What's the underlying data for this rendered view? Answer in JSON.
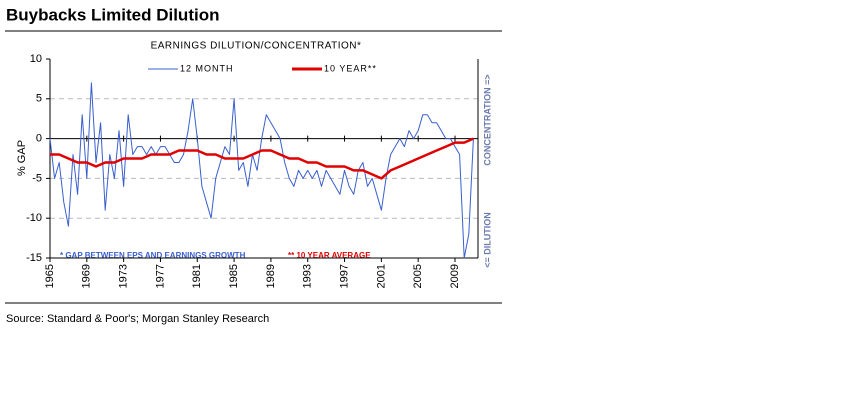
{
  "header": {
    "title": "Buybacks Limited Dilution"
  },
  "chart_data": {
    "type": "line",
    "title": "EARNINGS DILUTION/CONCENTRATION*",
    "y_label": "% GAP",
    "annotations": [
      "* GAP BETWEEN EPS AND EARNINGS GROWTH",
      "** 10 YEAR AVERAGE",
      "CONCENTRATION =>",
      "<= DILUTION"
    ],
    "xlim": [
      1965,
      2011.5
    ],
    "xticks": [
      1965,
      1969,
      1973,
      1977,
      1981,
      1985,
      1989,
      1993,
      1997,
      2001,
      2005,
      2009
    ],
    "ylim": [
      -15,
      10
    ],
    "yticks": [
      10,
      5,
      0,
      -5,
      -10,
      -15
    ],
    "grid": true,
    "series": [
      {
        "name": "12 MONTH",
        "color": "#3a5fcd",
        "x": [
          1965,
          1965.5,
          1966,
          1966.5,
          1967,
          1967.5,
          1968,
          1968.5,
          1969,
          1969.5,
          1970,
          1970.5,
          1971,
          1971.5,
          1972,
          1972.5,
          1973,
          1973.5,
          1974,
          1974.5,
          1975,
          1975.5,
          1976,
          1976.5,
          1977,
          1977.5,
          1978,
          1978.5,
          1979,
          1979.5,
          1980,
          1980.5,
          1981,
          1981.5,
          1982,
          1982.5,
          1983,
          1983.5,
          1984,
          1984.5,
          1985,
          1985.5,
          1986,
          1986.5,
          1987,
          1987.5,
          1988,
          1988.5,
          1989,
          1989.5,
          1990,
          1990.5,
          1991,
          1991.5,
          1992,
          1992.5,
          1993,
          1993.5,
          1994,
          1994.5,
          1995,
          1995.5,
          1996,
          1996.5,
          1997,
          1997.5,
          1998,
          1998.5,
          1999,
          1999.5,
          2000,
          2000.5,
          2001,
          2001.5,
          2002,
          2002.5,
          2003,
          2003.5,
          2004,
          2004.5,
          2005,
          2005.5,
          2006,
          2006.5,
          2007,
          2007.5,
          2008,
          2008.5,
          2009,
          2009.5,
          2010,
          2010.5,
          2011
        ],
        "values": [
          0,
          -5,
          -3,
          -8,
          -11,
          -2,
          -7,
          3,
          -5,
          7,
          -3,
          2,
          -9,
          -2,
          -5,
          1,
          -6,
          3,
          -2,
          -1,
          -1,
          -2,
          -1,
          -2,
          -1,
          -1,
          -2,
          -3,
          -3,
          -2,
          1,
          5,
          0,
          -6,
          -8,
          -10,
          -5,
          -3,
          -1,
          -2,
          5,
          -4,
          -3,
          -6,
          -2,
          -4,
          0,
          3,
          2,
          1,
          0,
          -3,
          -5,
          -6,
          -4,
          -5,
          -4,
          -5,
          -4,
          -6,
          -4,
          -5,
          -6,
          -7,
          -4,
          -6,
          -7,
          -4,
          -3,
          -6,
          -5,
          -7,
          -9,
          -5,
          -2,
          -1,
          0,
          -1,
          1,
          0,
          1,
          3,
          3,
          2,
          2,
          1,
          0,
          0,
          -1,
          -2,
          -15,
          -12,
          0
        ]
      },
      {
        "name": "10 YEAR**",
        "color": "#e00000",
        "x": [
          1965,
          1966,
          1967,
          1968,
          1969,
          1970,
          1971,
          1972,
          1973,
          1974,
          1975,
          1976,
          1977,
          1978,
          1979,
          1980,
          1981,
          1982,
          1983,
          1984,
          1985,
          1986,
          1987,
          1988,
          1989,
          1990,
          1991,
          1992,
          1993,
          1994,
          1995,
          1996,
          1997,
          1998,
          1999,
          2000,
          2001,
          2002,
          2003,
          2004,
          2005,
          2006,
          2007,
          2008,
          2009,
          2010,
          2011
        ],
        "values": [
          -2,
          -2,
          -2.5,
          -3,
          -3,
          -3.5,
          -3,
          -3,
          -2.5,
          -2.5,
          -2.5,
          -2,
          -2,
          -2,
          -1.5,
          -1.5,
          -1.5,
          -2,
          -2,
          -2.5,
          -2.5,
          -2.5,
          -2,
          -1.5,
          -1.5,
          -2,
          -2.5,
          -2.5,
          -3,
          -3,
          -3.5,
          -3.5,
          -3.5,
          -4,
          -4,
          -4.5,
          -5,
          -4,
          -3.5,
          -3,
          -2.5,
          -2,
          -1.5,
          -1,
          -0.5,
          -0.5,
          0
        ]
      }
    ]
  },
  "footer": {
    "source": "Source: Standard & Poor's; Morgan Stanley Research"
  }
}
